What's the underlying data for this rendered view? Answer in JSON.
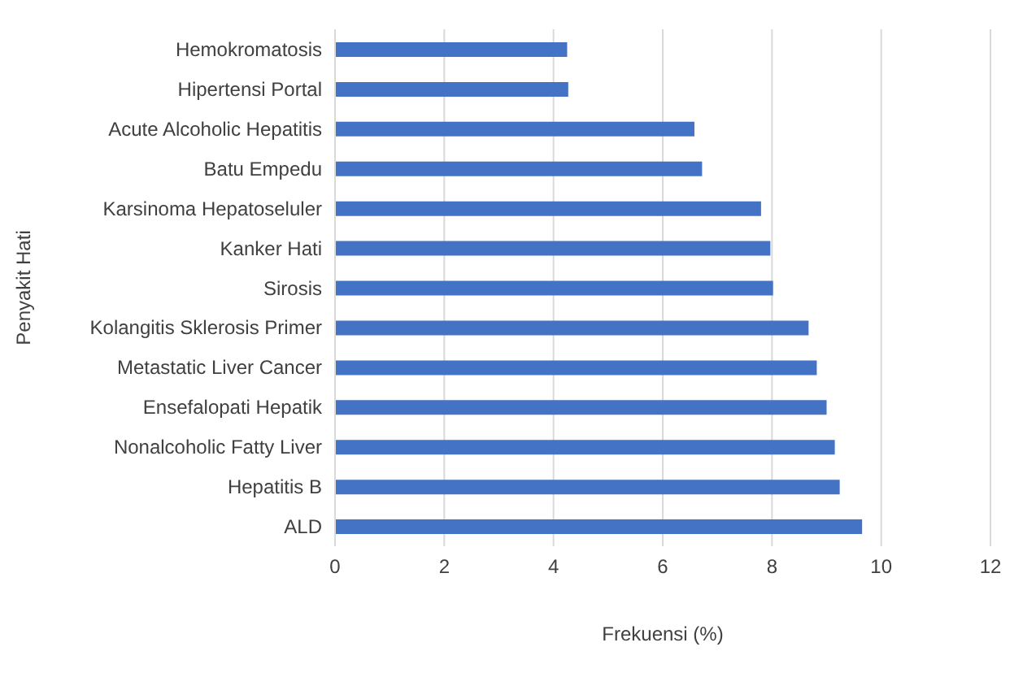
{
  "chart_data": {
    "type": "bar",
    "orientation": "horizontal",
    "xlabel": "Frekuensi (%)",
    "ylabel": "Penyakit Hati",
    "categories": [
      "Hemokromatosis",
      "Hipertensi Portal",
      "Acute Alcoholic Hepatitis",
      "Batu Empedu",
      "Karsinoma Hepatoseluler",
      "Kanker Hati",
      "Sirosis",
      "Kolangitis Sklerosis Primer",
      "Metastatic Liver Cancer",
      "Ensefalopati Hepatik",
      "Nonalcoholic Fatty Liver",
      "Hepatitis B",
      "ALD"
    ],
    "values": [
      4.25,
      4.27,
      6.58,
      6.72,
      7.8,
      7.97,
      8.02,
      8.67,
      8.82,
      9.0,
      9.15,
      9.24,
      9.65
    ],
    "color": "#4472c4",
    "xlim": [
      0,
      12
    ],
    "xticks": [
      0,
      2,
      4,
      6,
      8,
      10,
      12
    ],
    "grid": "x",
    "legend": false
  }
}
